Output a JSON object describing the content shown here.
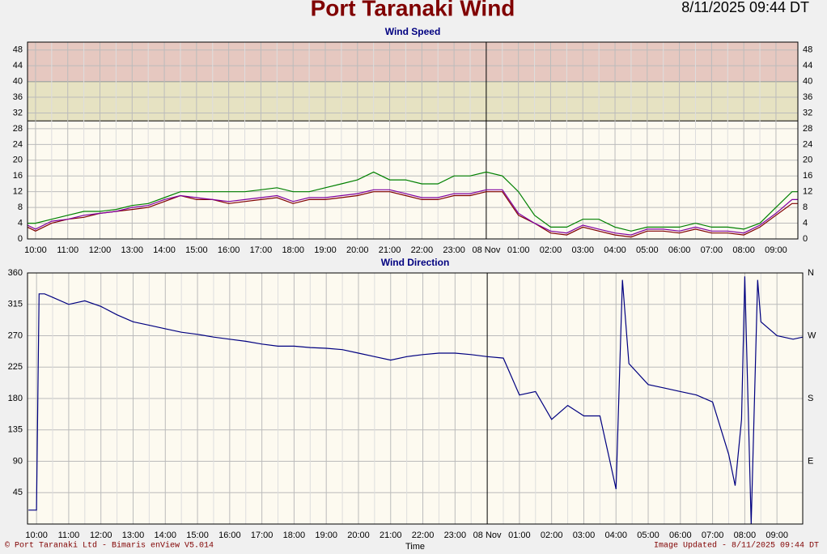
{
  "header": {
    "title": "Port Taranaki Wind",
    "timestamp": "8/11/2025 09:44 DT"
  },
  "footer": {
    "left": "© Port Taranaki Ltd - Bimaris enView V5.014",
    "right": "Image Updated - 8/11/2025 09:44 DT"
  },
  "chart_data": [
    {
      "type": "line",
      "title": "Wind Speed",
      "xlim": [
        9.75,
        33.68
      ],
      "ylim": [
        0,
        50
      ],
      "yticks": [
        0,
        4,
        8,
        12,
        16,
        20,
        24,
        28,
        32,
        36,
        40,
        44,
        48
      ],
      "mirror_y": true,
      "grid": true,
      "bands": [
        {
          "from": 30,
          "to": 40,
          "color": "#e6e2c2"
        },
        {
          "from": 40,
          "to": 50,
          "color": "#e6c8c0"
        }
      ],
      "xticks": [
        {
          "value": 10,
          "label": "10:00"
        },
        {
          "value": 11,
          "label": "11:00"
        },
        {
          "value": 12,
          "label": "12:00"
        },
        {
          "value": 13,
          "label": "13:00"
        },
        {
          "value": 14,
          "label": "14:00"
        },
        {
          "value": 15,
          "label": "15:00"
        },
        {
          "value": 16,
          "label": "16:00"
        },
        {
          "value": 17,
          "label": "17:00"
        },
        {
          "value": 18,
          "label": "18:00"
        },
        {
          "value": 19,
          "label": "19:00"
        },
        {
          "value": 20,
          "label": "20:00"
        },
        {
          "value": 21,
          "label": "21:00"
        },
        {
          "value": 22,
          "label": "22:00"
        },
        {
          "value": 23,
          "label": "23:00"
        },
        {
          "value": 24,
          "label": "08 Nov"
        },
        {
          "value": 25,
          "label": "01:00"
        },
        {
          "value": 26,
          "label": "02:00"
        },
        {
          "value": 27,
          "label": "03:00"
        },
        {
          "value": 28,
          "label": "04:00"
        },
        {
          "value": 29,
          "label": "05:00"
        },
        {
          "value": 30,
          "label": "06:00"
        },
        {
          "value": 31,
          "label": "07:00"
        },
        {
          "value": 32,
          "label": "08:00"
        },
        {
          "value": 33,
          "label": "09:00"
        }
      ],
      "x": [
        9.75,
        10,
        10.5,
        11,
        11.5,
        12,
        12.5,
        13,
        13.5,
        14,
        14.5,
        15,
        15.5,
        16,
        16.5,
        17,
        17.5,
        18,
        18.5,
        19,
        19.5,
        20,
        20.5,
        21,
        21.5,
        22,
        22.5,
        23,
        23.5,
        24,
        24.5,
        25,
        25.5,
        26,
        26.5,
        27,
        27.5,
        28,
        28.5,
        29,
        29.5,
        30,
        30.5,
        31,
        31.5,
        32,
        32.5,
        33,
        33.5,
        33.68
      ],
      "series": [
        {
          "color": "#008000",
          "values": [
            4,
            4,
            5,
            6,
            7,
            7,
            7.5,
            8.5,
            9,
            10.5,
            12,
            12,
            12,
            12,
            12,
            12.5,
            13,
            12,
            12,
            13,
            14,
            15,
            17,
            15,
            15,
            14,
            14,
            16,
            16,
            17,
            16,
            12,
            6,
            3,
            3,
            5,
            5,
            3,
            2,
            3,
            3,
            3,
            4,
            3,
            3,
            2.5,
            4,
            8,
            12,
            12
          ]
        },
        {
          "color": "#800000",
          "values": [
            3,
            2,
            4,
            5,
            5.5,
            6.5,
            7,
            7.5,
            8,
            9.5,
            11,
            10,
            10,
            9,
            9.5,
            10,
            10.5,
            9,
            10,
            10,
            10.5,
            11,
            12,
            12,
            11,
            10,
            10,
            11,
            11,
            12,
            12,
            6,
            4,
            1.5,
            1,
            3,
            2,
            1,
            0.5,
            2,
            2,
            1.5,
            2.5,
            1.5,
            1.5,
            1,
            3,
            6,
            9,
            9
          ]
        },
        {
          "color": "#8000a0",
          "values": [
            3.5,
            2.5,
            4.5,
            5,
            6,
            6.5,
            7,
            8,
            8.5,
            10,
            11,
            10.5,
            10,
            9.5,
            10,
            10.5,
            11,
            9.5,
            10.5,
            10.5,
            11,
            11.5,
            12.5,
            12.5,
            11.5,
            10.5,
            10.5,
            11.5,
            11.5,
            12.5,
            12.5,
            6.5,
            4,
            2,
            1.5,
            3.5,
            2.5,
            1.5,
            1,
            2.5,
            2.5,
            2,
            3,
            2,
            2,
            1.5,
            3.5,
            6.5,
            10,
            10
          ]
        }
      ]
    },
    {
      "type": "line",
      "title": "Wind Direction",
      "x_label": "Time",
      "xlim": [
        9.72,
        33.8
      ],
      "ylim": [
        0,
        360
      ],
      "yticks": [
        45,
        90,
        135,
        180,
        225,
        270,
        315,
        360
      ],
      "grid": true,
      "y2ticks": [
        {
          "value": 90,
          "label": "E"
        },
        {
          "value": 180,
          "label": "S"
        },
        {
          "value": 270,
          "label": "W"
        },
        {
          "value": 360,
          "label": "N"
        }
      ],
      "xticks": [
        {
          "value": 10,
          "label": "10:00"
        },
        {
          "value": 11,
          "label": "11:00"
        },
        {
          "value": 12,
          "label": "12:00"
        },
        {
          "value": 13,
          "label": "13:00"
        },
        {
          "value": 14,
          "label": "14:00"
        },
        {
          "value": 15,
          "label": "15:00"
        },
        {
          "value": 16,
          "label": "16:00"
        },
        {
          "value": 17,
          "label": "17:00"
        },
        {
          "value": 18,
          "label": "18:00"
        },
        {
          "value": 19,
          "label": "19:00"
        },
        {
          "value": 20,
          "label": "20:00"
        },
        {
          "value": 21,
          "label": "21:00"
        },
        {
          "value": 22,
          "label": "22:00"
        },
        {
          "value": 23,
          "label": "23:00"
        },
        {
          "value": 24,
          "label": "08 Nov"
        },
        {
          "value": 25,
          "label": "01:00"
        },
        {
          "value": 26,
          "label": "02:00"
        },
        {
          "value": 27,
          "label": "03:00"
        },
        {
          "value": 28,
          "label": "04:00"
        },
        {
          "value": 29,
          "label": "05:00"
        },
        {
          "value": 30,
          "label": "06:00"
        },
        {
          "value": 31,
          "label": "07:00"
        },
        {
          "value": 32,
          "label": "08:00"
        },
        {
          "value": 33,
          "label": "09:00"
        }
      ],
      "x": [
        9.75,
        10,
        10.08,
        10.25,
        10.5,
        11,
        11.5,
        12,
        12.5,
        13,
        13.5,
        14,
        14.5,
        15,
        15.5,
        16,
        16.5,
        17,
        17.5,
        18,
        18.5,
        19,
        19.5,
        20,
        20.5,
        21,
        21.5,
        22,
        22.5,
        23,
        23.5,
        24,
        24.5,
        25,
        25.5,
        26,
        26.5,
        27,
        27.5,
        28,
        28.2,
        28.4,
        29,
        29.5,
        30,
        30.5,
        31,
        31.5,
        31.7,
        31.9,
        32,
        32.2,
        32.4,
        32.5,
        33,
        33.5,
        33.8
      ],
      "series": [
        {
          "color": "#000080",
          "values": [
            20,
            20,
            330,
            330,
            325,
            315,
            320,
            312,
            300,
            290,
            285,
            280,
            275,
            272,
            268,
            265,
            262,
            258,
            255,
            255,
            253,
            252,
            250,
            245,
            240,
            235,
            240,
            243,
            245,
            245,
            243,
            240,
            238,
            185,
            190,
            150,
            170,
            155,
            155,
            50,
            350,
            230,
            200,
            195,
            190,
            185,
            175,
            100,
            55,
            150,
            355,
            0,
            350,
            290,
            270,
            265,
            268
          ]
        }
      ]
    }
  ]
}
